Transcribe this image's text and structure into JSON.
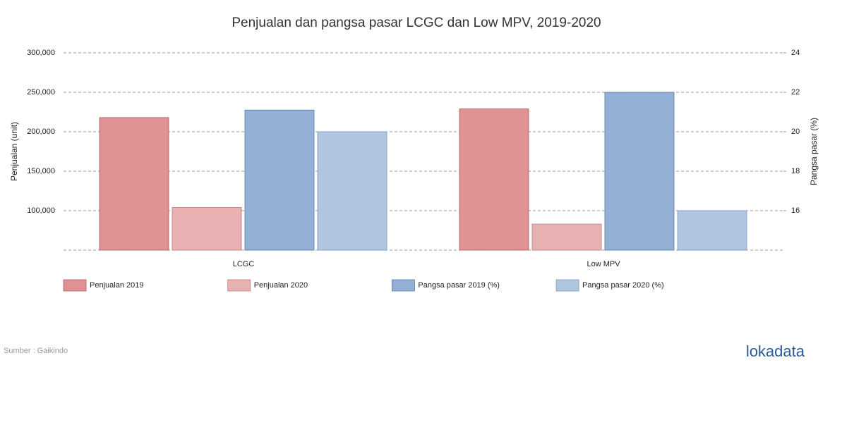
{
  "chart_data": {
    "type": "bar",
    "title": "Penjualan dan pangsa pasar LCGC dan Low MPV, 2019-2020",
    "y_label": "Penjualan (unit)",
    "y2_label": "Pangsa pasar (%)",
    "categories": [
      "LCGC",
      "Low MPV"
    ],
    "series": [
      {
        "name": "Penjualan 2019",
        "color": "#e09194",
        "values": [
          218000,
          229000
        ]
      },
      {
        "name": "Penjualan 2020",
        "color": "#e8b1b2",
        "values": [
          104000,
          83000
        ]
      },
      {
        "name": "Pangsa pasar 2019 (%)",
        "color": "#93b0d6",
        "values": [
          21.1,
          22
        ],
        "axis": "y2"
      },
      {
        "name": "Pangsa pasar 2020 (%)",
        "color": "#b0c6e0",
        "values": [
          20,
          16
        ],
        "axis": "y2"
      }
    ],
    "ylim": [
      50000,
      300000
    ],
    "yticks": [
      {
        "value": 100000,
        "label": "100,000"
      },
      {
        "value": 150000,
        "label": "150,000"
      },
      {
        "value": 200000,
        "label": "200,000"
      },
      {
        "value": 250000,
        "label": "250,000"
      },
      {
        "value": 300000,
        "label": "300,000"
      }
    ],
    "y2lim": [
      14,
      24
    ],
    "y2ticks": [
      16,
      18,
      20,
      22,
      24
    ],
    "grid": true,
    "legend": "bottom",
    "source": "Sumber : Gaikindo",
    "logo": "lokadata"
  }
}
